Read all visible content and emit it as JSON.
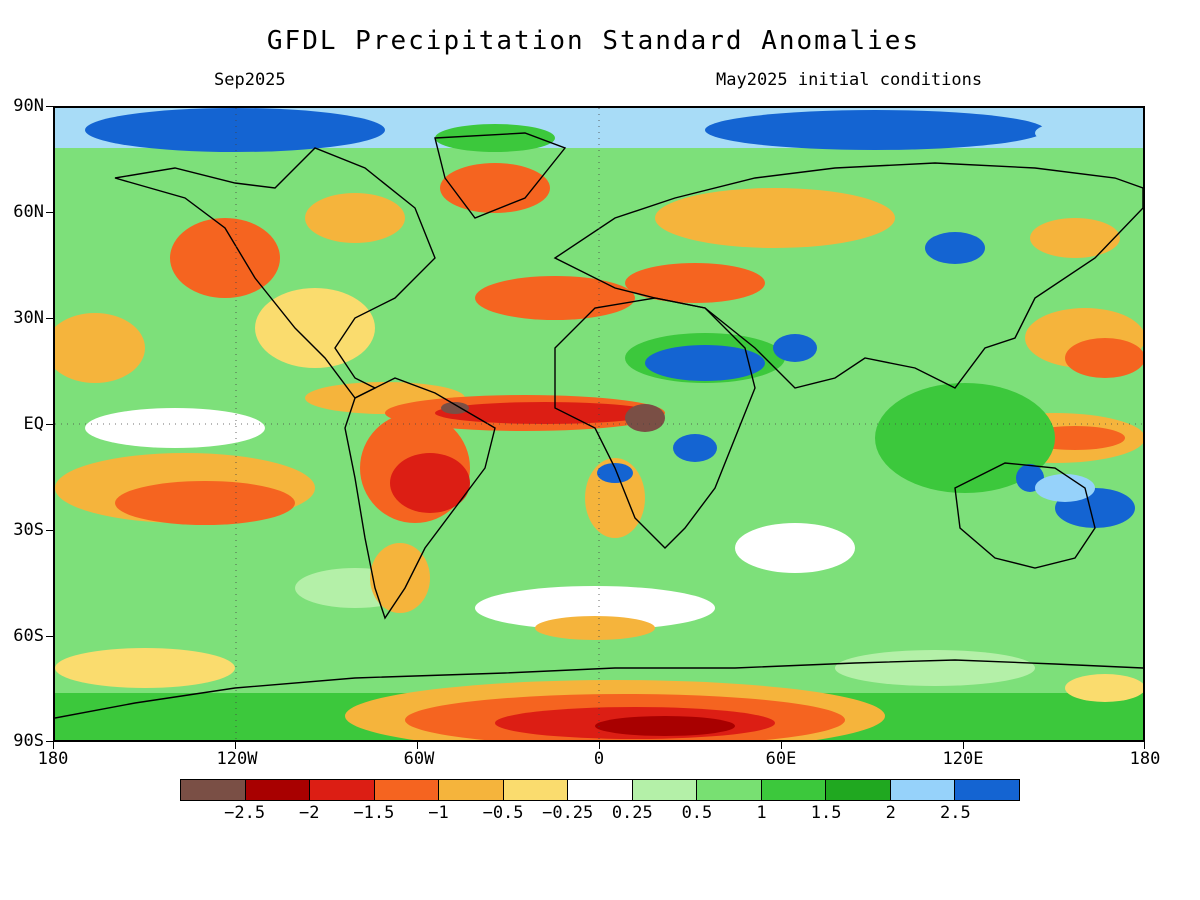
{
  "title": "GFDL Precipitation Standard Anomalies",
  "subtitle_left": "Sep2025",
  "subtitle_right": "May2025 initial conditions",
  "map": {
    "projection": "equirectangular",
    "lon_range": [
      -180,
      180
    ],
    "lat_range": [
      -90,
      90
    ],
    "lat_ticks": [
      "90N",
      "60N",
      "30N",
      "EQ",
      "30S",
      "60S",
      "90S"
    ],
    "lon_ticks": [
      "180",
      "120W",
      "60W",
      "0",
      "60E",
      "120E",
      "180"
    ],
    "background_color": "#7de07a"
  },
  "colorbar": {
    "colors": [
      "#7a4f45",
      "#a80000",
      "#dc1e14",
      "#f56420",
      "#f5b43c",
      "#fadc6e",
      "#ffffff",
      "#b4f0a8",
      "#78e072",
      "#3cc83c",
      "#20a820",
      "#96d2fa",
      "#1464d2"
    ],
    "labels": [
      "-2.5",
      "-2",
      "-1.5",
      "-1",
      "-0.5",
      "-0.25",
      "0.25",
      "0.5",
      "1",
      "1.5",
      "2",
      "2.5"
    ]
  }
}
